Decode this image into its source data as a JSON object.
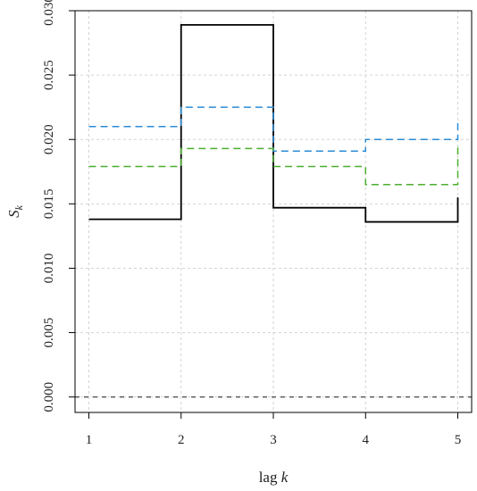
{
  "chart_data": {
    "type": "line",
    "step": true,
    "xlabel": "lag k",
    "ylabel": "S_k",
    "xlim": [
      0.85,
      5.15
    ],
    "ylim": [
      -0.0012,
      0.03
    ],
    "x_ticks": [
      1,
      2,
      3,
      4,
      5
    ],
    "y_ticks": [
      0.0,
      0.005,
      0.01,
      0.015,
      0.02,
      0.025,
      0.03
    ],
    "y_tick_labels": [
      "0.000",
      "0.005",
      "0.010",
      "0.015",
      "0.020",
      "0.025",
      "0.030"
    ],
    "grid": true,
    "reference_line": {
      "y": 0.0,
      "style": "dashed",
      "color": "#555555"
    },
    "series": [
      {
        "style": "solid",
        "color": "#000000",
        "x": [
          1,
          2,
          3,
          4,
          5
        ],
        "values": [
          0.0138,
          0.0289,
          0.0147,
          0.0136,
          0.0155
        ]
      },
      {
        "style": "dashed",
        "color": "#2b8cd6",
        "x": [
          1,
          2,
          3,
          4,
          5
        ],
        "values": [
          0.021,
          0.0225,
          0.0191,
          0.02,
          0.0215
        ]
      },
      {
        "style": "dashed",
        "color": "#4cae2f",
        "x": [
          1,
          2,
          3,
          4,
          5
        ],
        "values": [
          0.0179,
          0.0193,
          0.0179,
          0.0165,
          0.0195
        ]
      }
    ]
  }
}
